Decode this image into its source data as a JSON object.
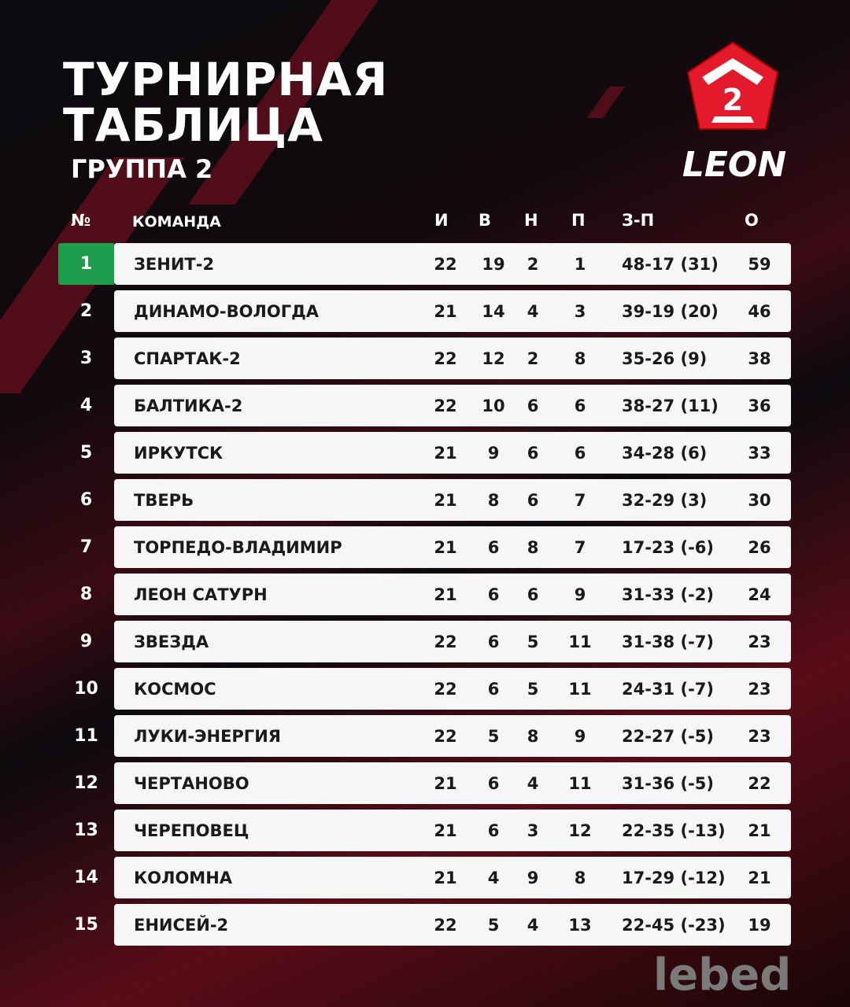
{
  "header": {
    "title_line1": "ТУРНИРНАЯ",
    "title_line2": "ТАБЛИЦА",
    "subtitle": "ГРУППА 2"
  },
  "logo": {
    "badge_number": "2",
    "brand": "LEON"
  },
  "colors": {
    "leader": "#1e9c4e",
    "accent": "#e3192c"
  },
  "columns": {
    "rank": "№",
    "team": "КОМАНДА",
    "played": "И",
    "won": "В",
    "drawn": "Н",
    "lost": "П",
    "goals": "З-П",
    "points": "О"
  },
  "rows": [
    {
      "rank": "1",
      "team": "ЗЕНИТ-2",
      "played": "22",
      "won": "19",
      "drawn": "2",
      "lost": "1",
      "goals": "48-17 (31)",
      "points": "59"
    },
    {
      "rank": "2",
      "team": "ДИНАМО-ВОЛОГДА",
      "played": "21",
      "won": "14",
      "drawn": "4",
      "lost": "3",
      "goals": "39-19 (20)",
      "points": "46"
    },
    {
      "rank": "3",
      "team": "СПАРТАК-2",
      "played": "22",
      "won": "12",
      "drawn": "2",
      "lost": "8",
      "goals": "35-26 (9)",
      "points": "38"
    },
    {
      "rank": "4",
      "team": "БАЛТИКА-2",
      "played": "22",
      "won": "10",
      "drawn": "6",
      "lost": "6",
      "goals": "38-27 (11)",
      "points": "36"
    },
    {
      "rank": "5",
      "team": "ИРКУТСК",
      "played": "21",
      "won": "9",
      "drawn": "6",
      "lost": "6",
      "goals": "34-28 (6)",
      "points": "33"
    },
    {
      "rank": "6",
      "team": "ТВЕРЬ",
      "played": "21",
      "won": "8",
      "drawn": "6",
      "lost": "7",
      "goals": "32-29 (3)",
      "points": "30"
    },
    {
      "rank": "7",
      "team": "ТОРПЕДО-ВЛАДИМИР",
      "played": "21",
      "won": "6",
      "drawn": "8",
      "lost": "7",
      "goals": "17-23 (-6)",
      "points": "26"
    },
    {
      "rank": "8",
      "team": "ЛЕОН САТУРН",
      "played": "21",
      "won": "6",
      "drawn": "6",
      "lost": "9",
      "goals": "31-33 (-2)",
      "points": "24"
    },
    {
      "rank": "9",
      "team": "ЗВЕЗДА",
      "played": "22",
      "won": "6",
      "drawn": "5",
      "lost": "11",
      "goals": "31-38 (-7)",
      "points": "23"
    },
    {
      "rank": "10",
      "team": "КОСМОС",
      "played": "22",
      "won": "6",
      "drawn": "5",
      "lost": "11",
      "goals": "24-31 (-7)",
      "points": "23"
    },
    {
      "rank": "11",
      "team": "ЛУКИ-ЭНЕРГИЯ",
      "played": "22",
      "won": "5",
      "drawn": "8",
      "lost": "9",
      "goals": "22-27 (-5)",
      "points": "23"
    },
    {
      "rank": "12",
      "team": "ЧЕРТАНОВО",
      "played": "21",
      "won": "6",
      "drawn": "4",
      "lost": "11",
      "goals": "31-36 (-5)",
      "points": "22"
    },
    {
      "rank": "13",
      "team": "ЧЕРЕПОВЕЦ",
      "played": "21",
      "won": "6",
      "drawn": "3",
      "lost": "12",
      "goals": "22-35 (-13)",
      "points": "21"
    },
    {
      "rank": "14",
      "team": "КОЛОМНА",
      "played": "21",
      "won": "4",
      "drawn": "9",
      "lost": "8",
      "goals": "17-29 (-12)",
      "points": "21"
    },
    {
      "rank": "15",
      "team": "ЕНИСЕЙ-2",
      "played": "22",
      "won": "5",
      "drawn": "4",
      "lost": "13",
      "goals": "22-45 (-23)",
      "points": "19"
    }
  ],
  "watermark": "lebed"
}
